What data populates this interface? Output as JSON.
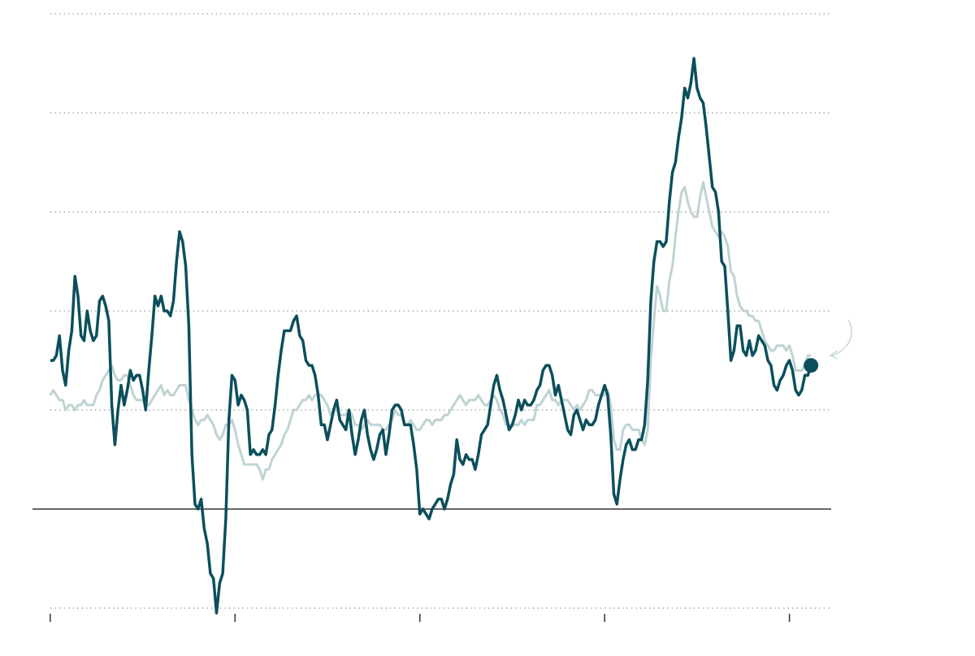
{
  "chart_data": {
    "type": "line",
    "x": [
      "2005-01",
      "2005-02",
      "2005-03",
      "2005-04",
      "2005-05",
      "2005-06",
      "2005-07",
      "2005-08",
      "2005-09",
      "2005-10",
      "2005-11",
      "2005-12",
      "2006-01",
      "2006-02",
      "2006-03",
      "2006-04",
      "2006-05",
      "2006-06",
      "2006-07",
      "2006-08",
      "2006-09",
      "2006-10",
      "2006-11",
      "2006-12",
      "2007-01",
      "2007-02",
      "2007-03",
      "2007-04",
      "2007-05",
      "2007-06",
      "2007-07",
      "2007-08",
      "2007-09",
      "2007-10",
      "2007-11",
      "2007-12",
      "2008-01",
      "2008-02",
      "2008-03",
      "2008-04",
      "2008-05",
      "2008-06",
      "2008-07",
      "2008-08",
      "2008-09",
      "2008-10",
      "2008-11",
      "2008-12",
      "2009-01",
      "2009-02",
      "2009-03",
      "2009-04",
      "2009-05",
      "2009-06",
      "2009-07",
      "2009-08",
      "2009-09",
      "2009-10",
      "2009-11",
      "2009-12",
      "2010-01",
      "2010-02",
      "2010-03",
      "2010-04",
      "2010-05",
      "2010-06",
      "2010-07",
      "2010-08",
      "2010-09",
      "2010-10",
      "2010-11",
      "2010-12",
      "2011-01",
      "2011-02",
      "2011-03",
      "2011-04",
      "2011-05",
      "2011-06",
      "2011-07",
      "2011-08",
      "2011-09",
      "2011-10",
      "2011-11",
      "2011-12",
      "2012-01",
      "2012-02",
      "2012-03",
      "2012-04",
      "2012-05",
      "2012-06",
      "2012-07",
      "2012-08",
      "2012-09",
      "2012-10",
      "2012-11",
      "2012-12",
      "2013-01",
      "2013-02",
      "2013-03",
      "2013-04",
      "2013-05",
      "2013-06",
      "2013-07",
      "2013-08",
      "2013-09",
      "2013-10",
      "2013-11",
      "2013-12",
      "2014-01",
      "2014-02",
      "2014-03",
      "2014-04",
      "2014-05",
      "2014-06",
      "2014-07",
      "2014-08",
      "2014-09",
      "2014-10",
      "2014-11",
      "2014-12",
      "2015-01",
      "2015-02",
      "2015-03",
      "2015-04",
      "2015-05",
      "2015-06",
      "2015-07",
      "2015-08",
      "2015-09",
      "2015-10",
      "2015-11",
      "2015-12",
      "2016-01",
      "2016-02",
      "2016-03",
      "2016-04",
      "2016-05",
      "2016-06",
      "2016-07",
      "2016-08",
      "2016-09",
      "2016-10",
      "2016-11",
      "2016-12",
      "2017-01",
      "2017-02",
      "2017-03",
      "2017-04",
      "2017-05",
      "2017-06",
      "2017-07",
      "2017-08",
      "2017-09",
      "2017-10",
      "2017-11",
      "2017-12",
      "2018-01",
      "2018-02",
      "2018-03",
      "2018-04",
      "2018-05",
      "2018-06",
      "2018-07",
      "2018-08",
      "2018-09",
      "2018-10",
      "2018-11",
      "2018-12",
      "2019-01",
      "2019-02",
      "2019-03",
      "2019-04",
      "2019-05",
      "2019-06",
      "2019-07",
      "2019-08",
      "2019-09",
      "2019-10",
      "2019-11",
      "2019-12",
      "2020-01",
      "2020-02",
      "2020-03",
      "2020-04",
      "2020-05",
      "2020-06",
      "2020-07",
      "2020-08",
      "2020-09",
      "2020-10",
      "2020-11",
      "2020-12",
      "2021-01",
      "2021-02",
      "2021-03",
      "2021-04",
      "2021-05",
      "2021-06",
      "2021-07",
      "2021-08",
      "2021-09",
      "2021-10",
      "2021-11",
      "2021-12",
      "2022-01",
      "2022-02",
      "2022-03",
      "2022-04",
      "2022-05",
      "2022-06",
      "2022-07",
      "2022-08",
      "2022-09",
      "2022-10",
      "2022-11",
      "2022-12",
      "2023-01",
      "2023-02",
      "2023-03",
      "2023-04",
      "2023-05",
      "2023-06",
      "2023-07",
      "2023-08",
      "2023-09",
      "2023-10",
      "2023-11",
      "2023-12",
      "2024-01",
      "2024-02",
      "2024-03",
      "2024-04",
      "2024-05",
      "2024-06",
      "2024-07",
      "2024-08",
      "2024-09",
      "2024-10",
      "2024-11",
      "2024-12",
      "2025-01",
      "2025-02",
      "2025-03",
      "2025-04",
      "2025-05",
      "2025-06",
      "2025-07",
      "2025-08"
    ],
    "series": [
      {
        "color": "#bfd3d3",
        "values": [
          2.3,
          2.4,
          2.3,
          2.2,
          2.2,
          2.0,
          2.1,
          2.1,
          2.0,
          2.1,
          2.1,
          2.2,
          2.1,
          2.1,
          2.1,
          2.3,
          2.4,
          2.6,
          2.7,
          2.8,
          2.9,
          2.7,
          2.6,
          2.6,
          2.7,
          2.7,
          2.5,
          2.3,
          2.2,
          2.2,
          2.2,
          2.1,
          2.1,
          2.2,
          2.3,
          2.4,
          2.5,
          2.3,
          2.4,
          2.3,
          2.3,
          2.4,
          2.5,
          2.5,
          2.5,
          2.2,
          2.0,
          1.8,
          1.7,
          1.8,
          1.8,
          1.9,
          1.8,
          1.7,
          1.5,
          1.4,
          1.5,
          1.7,
          1.7,
          1.8,
          1.6,
          1.3,
          1.1,
          0.9,
          0.9,
          0.9,
          0.9,
          0.9,
          0.8,
          0.6,
          0.8,
          0.8,
          1.0,
          1.1,
          1.2,
          1.3,
          1.5,
          1.6,
          1.8,
          2.0,
          2.0,
          2.1,
          2.2,
          2.2,
          2.3,
          2.2,
          2.3,
          2.3,
          2.3,
          2.2,
          2.1,
          1.9,
          2.0,
          2.0,
          1.9,
          1.9,
          1.9,
          2.0,
          1.9,
          1.7,
          1.7,
          1.6,
          1.7,
          1.8,
          1.7,
          1.7,
          1.7,
          1.7,
          1.6,
          1.6,
          1.7,
          1.8,
          2.0,
          1.9,
          1.9,
          1.7,
          1.7,
          1.8,
          1.7,
          1.6,
          1.6,
          1.7,
          1.8,
          1.8,
          1.7,
          1.8,
          1.8,
          1.8,
          1.9,
          1.9,
          2.0,
          2.1,
          2.2,
          2.3,
          2.2,
          2.1,
          2.2,
          2.2,
          2.2,
          2.3,
          2.2,
          2.1,
          2.1,
          2.2,
          2.3,
          2.2,
          2.0,
          1.9,
          1.7,
          1.7,
          1.7,
          1.7,
          1.7,
          1.8,
          1.7,
          1.8,
          1.8,
          1.8,
          2.1,
          2.1,
          2.2,
          2.3,
          2.4,
          2.2,
          2.2,
          2.1,
          2.2,
          2.2,
          2.2,
          2.1,
          2.0,
          2.1,
          2.0,
          2.1,
          2.2,
          2.4,
          2.4,
          2.3,
          2.3,
          2.3,
          2.3,
          2.4,
          2.1,
          1.4,
          1.2,
          1.2,
          1.6,
          1.7,
          1.7,
          1.6,
          1.6,
          1.6,
          1.4,
          1.3,
          1.6,
          3.0,
          3.8,
          4.5,
          4.3,
          4.0,
          4.0,
          4.6,
          4.9,
          5.5,
          6.0,
          6.4,
          6.5,
          6.2,
          6.0,
          5.9,
          5.9,
          6.3,
          6.6,
          6.3,
          6.0,
          5.7,
          5.6,
          5.5,
          5.6,
          5.5,
          5.3,
          4.8,
          4.7,
          4.3,
          4.1,
          4.0,
          4.0,
          3.9,
          3.9,
          3.8,
          3.8,
          3.6,
          3.4,
          3.3,
          3.2,
          3.2,
          3.3,
          3.3,
          3.3,
          3.2,
          3.3,
          3.1,
          2.8,
          2.8,
          2.8,
          2.9,
          3.1,
          3.1
        ]
      },
      {
        "color": "#0b4f5c",
        "values": [
          3.0,
          3.0,
          3.1,
          3.5,
          2.8,
          2.5,
          3.2,
          3.6,
          4.7,
          4.3,
          3.5,
          3.4,
          4.0,
          3.6,
          3.4,
          3.5,
          4.2,
          4.3,
          4.1,
          3.8,
          2.1,
          1.3,
          2.0,
          2.5,
          2.1,
          2.4,
          2.8,
          2.6,
          2.7,
          2.7,
          2.4,
          2.0,
          2.8,
          3.5,
          4.3,
          4.1,
          4.3,
          4.0,
          4.0,
          3.9,
          4.2,
          5.0,
          5.6,
          5.4,
          4.9,
          3.7,
          1.1,
          0.1,
          0.0,
          0.2,
          -0.4,
          -0.7,
          -1.3,
          -1.4,
          -2.1,
          -1.5,
          -1.3,
          -0.2,
          1.8,
          2.7,
          2.6,
          2.1,
          2.3,
          2.2,
          2.0,
          1.1,
          1.2,
          1.1,
          1.1,
          1.2,
          1.1,
          1.5,
          1.6,
          2.1,
          2.7,
          3.2,
          3.6,
          3.6,
          3.6,
          3.8,
          3.9,
          3.5,
          3.4,
          3.0,
          2.9,
          2.9,
          2.7,
          2.3,
          1.7,
          1.7,
          1.4,
          1.7,
          2.0,
          2.2,
          1.8,
          1.7,
          1.6,
          2.0,
          1.5,
          1.1,
          1.4,
          1.8,
          2.0,
          1.5,
          1.2,
          1.0,
          1.2,
          1.5,
          1.6,
          1.1,
          1.5,
          2.0,
          2.1,
          2.1,
          2.0,
          1.7,
          1.7,
          1.7,
          1.3,
          0.8,
          -0.1,
          0.0,
          -0.1,
          -0.2,
          0.0,
          0.1,
          0.2,
          0.2,
          0.0,
          0.2,
          0.5,
          0.7,
          1.4,
          1.0,
          0.9,
          1.1,
          1.0,
          1.0,
          0.8,
          1.1,
          1.5,
          1.6,
          1.7,
          2.1,
          2.5,
          2.7,
          2.4,
          2.2,
          1.9,
          1.6,
          1.7,
          1.9,
          2.2,
          2.0,
          2.2,
          2.1,
          2.1,
          2.2,
          2.4,
          2.5,
          2.8,
          2.9,
          2.9,
          2.7,
          2.3,
          2.5,
          2.2,
          1.9,
          1.6,
          1.5,
          1.9,
          2.0,
          1.8,
          1.6,
          1.8,
          1.7,
          1.7,
          1.8,
          2.1,
          2.3,
          2.5,
          2.3,
          1.5,
          0.3,
          0.1,
          0.6,
          1.0,
          1.3,
          1.4,
          1.2,
          1.2,
          1.4,
          1.4,
          1.7,
          2.6,
          4.2,
          5.0,
          5.4,
          5.4,
          5.3,
          5.4,
          6.2,
          6.8,
          7.0,
          7.5,
          7.9,
          8.5,
          8.3,
          8.6,
          9.1,
          8.5,
          8.3,
          8.2,
          7.7,
          7.1,
          6.5,
          6.4,
          6.0,
          5.0,
          4.9,
          4.0,
          3.0,
          3.2,
          3.7,
          3.7,
          3.2,
          3.1,
          3.4,
          3.1,
          3.2,
          3.5,
          3.4,
          3.3,
          3.0,
          2.9,
          2.5,
          2.4,
          2.6,
          2.7,
          2.9,
          3.0,
          2.8,
          2.4,
          2.3,
          2.4,
          2.7,
          2.7,
          2.9
        ]
      }
    ],
    "xlim": [
      2004.52,
      2026.13
    ],
    "xticks": [
      2005,
      2010,
      2015,
      2020,
      2025
    ],
    "ylim": [
      -2,
      10
    ],
    "yticks": [
      -2,
      0,
      2,
      4,
      6,
      8,
      10
    ],
    "grid": true
  }
}
